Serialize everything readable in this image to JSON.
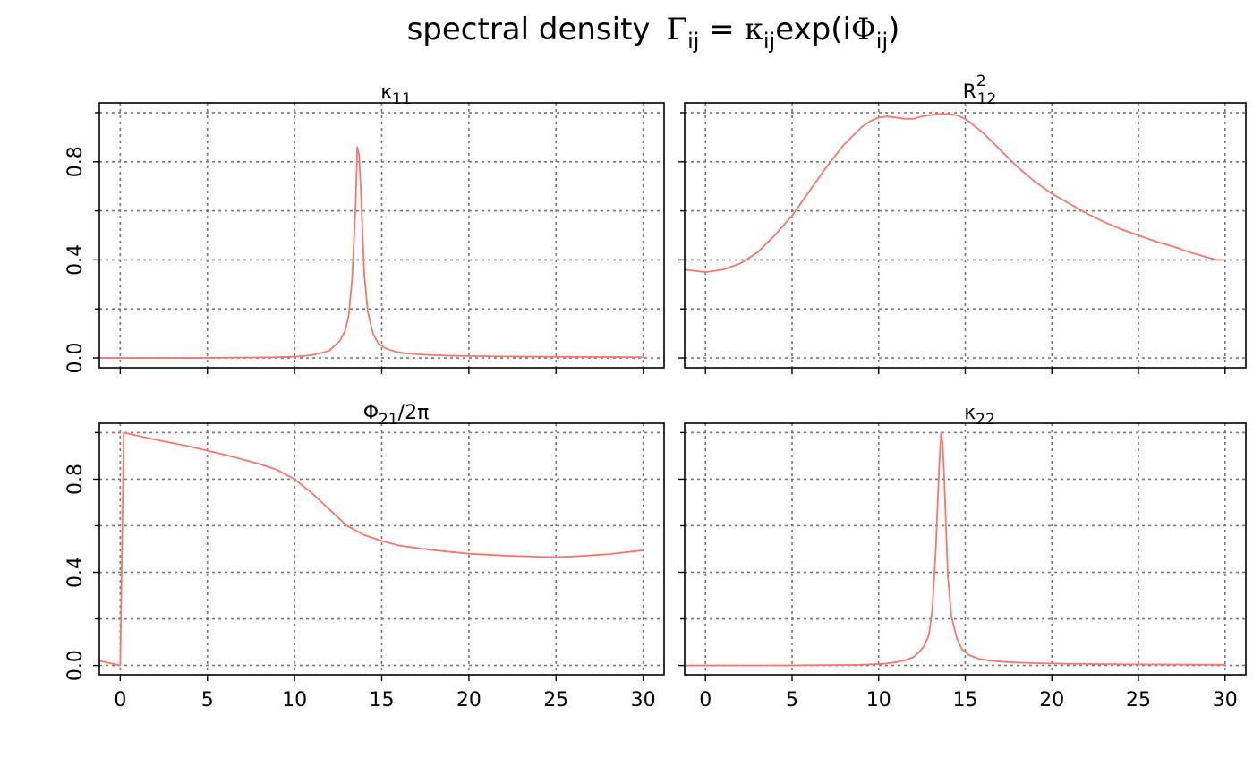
{
  "title": {
    "text": "spectral density",
    "gamma": "Γ",
    "gamma_sub": "ij",
    "eq": " = ",
    "kappa": "κ",
    "kappa_sub": "ij",
    "exp": "exp(i",
    "phi": "Φ",
    "phi_sub": "ij",
    "close": ")"
  },
  "colors": {
    "series": "#F8766D"
  },
  "chart_data": [
    {
      "type": "line",
      "title": "κ",
      "title_sub": "11",
      "title_sup": "",
      "title_suffix": "",
      "xlim": [
        -1.2,
        31.2
      ],
      "ylim": [
        -0.04,
        1.04
      ],
      "xticks": [
        0,
        5,
        10,
        15,
        20,
        25,
        30
      ],
      "yticks": [
        0.0,
        0.4,
        0.8
      ],
      "yminor": [
        0.2,
        0.6,
        1.0
      ],
      "grid": true,
      "x": [
        -1.2,
        0,
        2,
        4,
        6,
        8,
        9,
        10,
        10.5,
        11,
        11.5,
        12,
        12.3,
        12.6,
        12.9,
        13.1,
        13.3,
        13.5,
        13.6,
        13.7,
        13.8,
        13.9,
        14.0,
        14.2,
        14.5,
        14.8,
        15.2,
        15.8,
        16.5,
        17.5,
        19,
        21,
        24,
        27,
        30
      ],
      "y": [
        0.0,
        0.0,
        0.0,
        0.0,
        0.001,
        0.002,
        0.003,
        0.005,
        0.008,
        0.012,
        0.02,
        0.03,
        0.05,
        0.07,
        0.11,
        0.17,
        0.32,
        0.62,
        0.86,
        0.83,
        0.69,
        0.51,
        0.34,
        0.19,
        0.1,
        0.06,
        0.04,
        0.025,
        0.018,
        0.013,
        0.009,
        0.007,
        0.005,
        0.004,
        0.003
      ]
    },
    {
      "type": "line",
      "title": "R",
      "title_sub": "12",
      "title_sup": "2",
      "title_suffix": "",
      "xlim": [
        -1.2,
        31.2
      ],
      "ylim": [
        -0.04,
        1.04
      ],
      "xticks": [
        0,
        5,
        10,
        15,
        20,
        25,
        30
      ],
      "yticks": [
        0.0,
        0.4,
        0.8
      ],
      "yminor": [
        0.2,
        0.6,
        1.0
      ],
      "grid": true,
      "x": [
        -1.2,
        0,
        1,
        2,
        3,
        4,
        5,
        6,
        7,
        8,
        9,
        9.5,
        10,
        10.5,
        11,
        11.5,
        12,
        12.5,
        13,
        13.5,
        14,
        14.5,
        15,
        16,
        17,
        18,
        19,
        20,
        21,
        22,
        23,
        24,
        25,
        26,
        27,
        28,
        29,
        29.5,
        30
      ],
      "y": [
        0.36,
        0.35,
        0.36,
        0.385,
        0.43,
        0.5,
        0.58,
        0.68,
        0.78,
        0.87,
        0.94,
        0.965,
        0.98,
        0.985,
        0.98,
        0.975,
        0.975,
        0.985,
        0.99,
        0.995,
        0.995,
        0.99,
        0.975,
        0.92,
        0.85,
        0.78,
        0.72,
        0.67,
        0.63,
        0.59,
        0.555,
        0.525,
        0.5,
        0.475,
        0.455,
        0.43,
        0.41,
        0.4,
        0.4
      ]
    },
    {
      "type": "line",
      "title": "Φ",
      "title_sub": "21",
      "title_sup": "",
      "title_suffix": "/2π",
      "xlim": [
        -1.2,
        31.2
      ],
      "ylim": [
        -0.04,
        1.04
      ],
      "xticks": [
        0,
        5,
        10,
        15,
        20,
        25,
        30
      ],
      "yticks": [
        0.0,
        0.4,
        0.8
      ],
      "yminor": [
        0.2,
        0.6,
        1.0
      ],
      "grid": true,
      "x": [
        -1.2,
        0,
        0.2,
        2,
        4,
        6,
        8,
        9,
        10,
        11,
        12,
        13,
        14,
        15,
        16,
        18,
        20,
        22,
        24,
        25,
        26,
        28,
        30
      ],
      "y": [
        0.02,
        0.0,
        1.0,
        0.97,
        0.94,
        0.905,
        0.865,
        0.84,
        0.8,
        0.74,
        0.67,
        0.6,
        0.56,
        0.535,
        0.515,
        0.495,
        0.48,
        0.472,
        0.467,
        0.466,
        0.468,
        0.478,
        0.495
      ]
    },
    {
      "type": "line",
      "title": "κ",
      "title_sub": "22",
      "title_sup": "",
      "title_suffix": "",
      "xlim": [
        -1.2,
        31.2
      ],
      "ylim": [
        -0.04,
        1.04
      ],
      "xticks": [
        0,
        5,
        10,
        15,
        20,
        25,
        30
      ],
      "yticks": [
        0.0,
        0.4,
        0.8
      ],
      "yminor": [
        0.2,
        0.6,
        1.0
      ],
      "grid": true,
      "x": [
        -1.2,
        0,
        2,
        4,
        6,
        8,
        9,
        10,
        10.5,
        11,
        11.5,
        12,
        12.3,
        12.6,
        12.9,
        13.1,
        13.3,
        13.5,
        13.6,
        13.7,
        13.8,
        13.9,
        14.0,
        14.2,
        14.5,
        14.8,
        15.2,
        15.8,
        16.5,
        17.5,
        19,
        21,
        24,
        27,
        30
      ],
      "y": [
        0.0,
        0.0,
        0.0,
        0.0,
        0.001,
        0.002,
        0.003,
        0.006,
        0.009,
        0.014,
        0.022,
        0.035,
        0.055,
        0.08,
        0.13,
        0.24,
        0.5,
        0.86,
        1.0,
        0.95,
        0.78,
        0.57,
        0.38,
        0.21,
        0.12,
        0.07,
        0.045,
        0.028,
        0.02,
        0.014,
        0.01,
        0.007,
        0.005,
        0.004,
        0.003
      ]
    }
  ]
}
